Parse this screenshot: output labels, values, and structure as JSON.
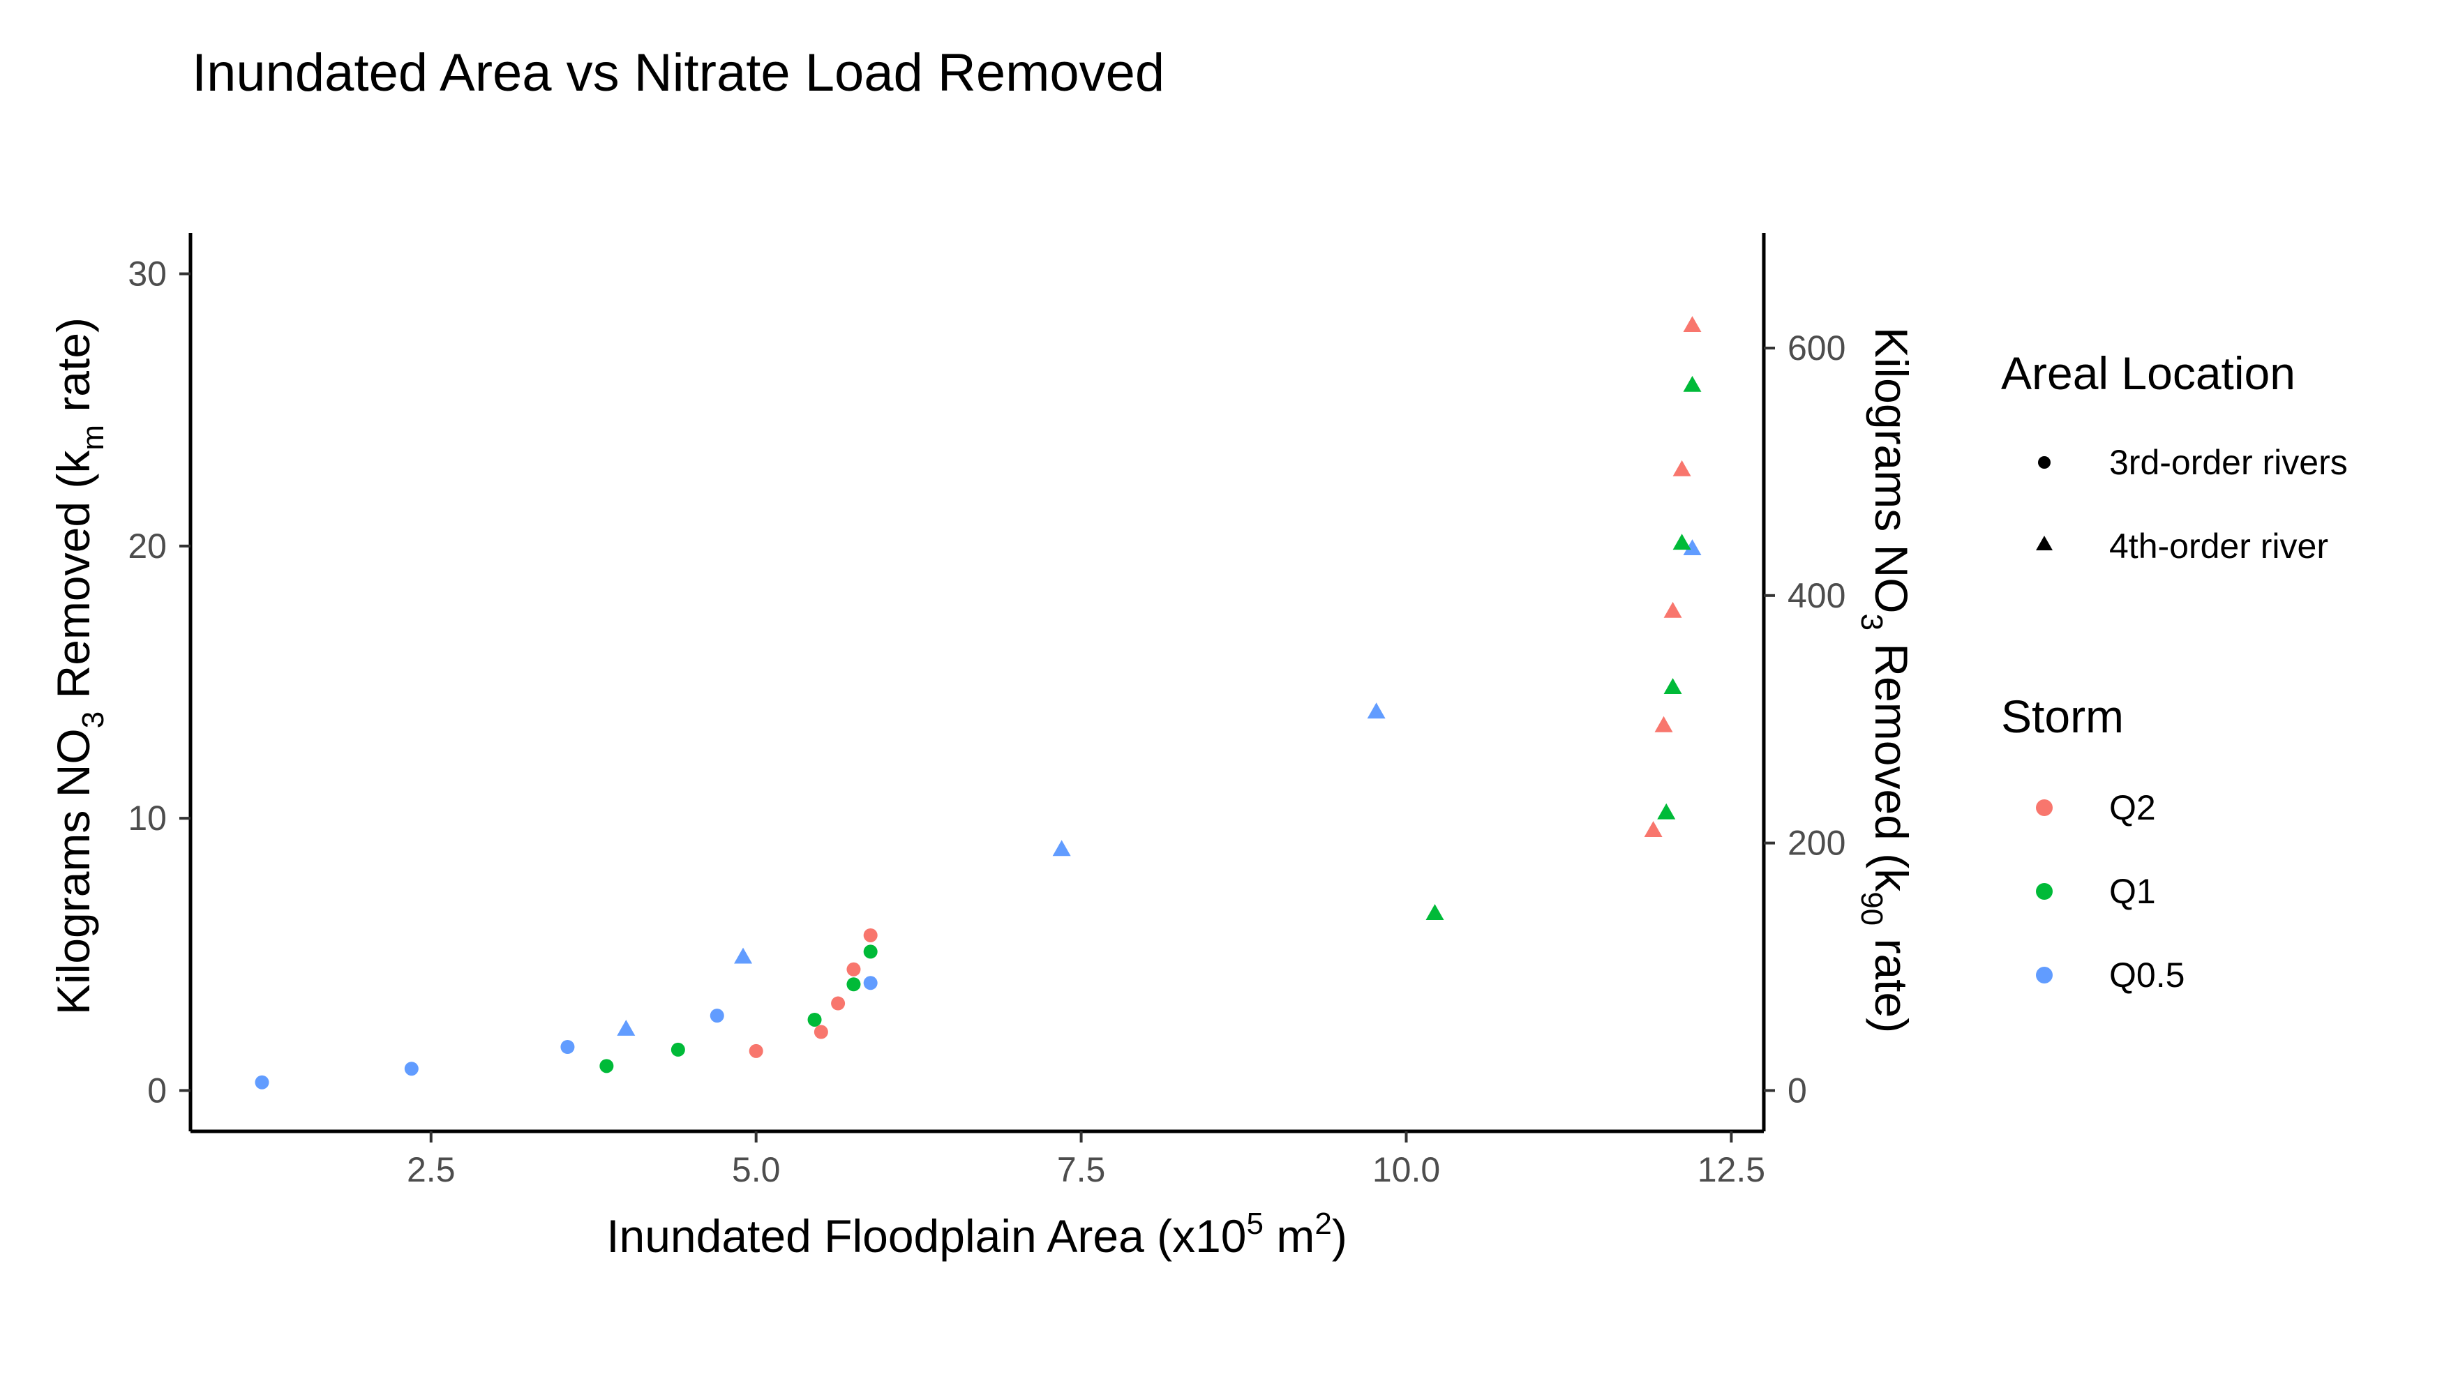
{
  "chart_data": {
    "type": "scatter",
    "title": "Inundated Area vs Nitrate Load Removed",
    "xlabel": {
      "main": "Inundated Floodplain Area (x10",
      "sup1": "5",
      "mid": " m",
      "sup2": "2",
      "end": ")"
    },
    "ylabel_left": {
      "main": "Kilograms NO",
      "sub1": "3",
      "mid": " Removed (k",
      "sub2": "m",
      "end": " rate)"
    },
    "ylabel_right": {
      "main": "Kilograms NO",
      "sub1": "3",
      "mid": " Removed (k",
      "sub2": "90",
      "end": " rate)"
    },
    "xlim": [
      0.65,
      12.75
    ],
    "ylim_left": [
      -1.5,
      31.5
    ],
    "ylim_right": [
      -33,
      693
    ],
    "x_ticks": [
      2.5,
      5.0,
      7.5,
      10.0,
      12.5
    ],
    "x_tick_labels": [
      "2.5",
      "5.0",
      "7.5",
      "10.0",
      "12.5"
    ],
    "y_left_ticks": [
      0,
      10,
      20,
      30
    ],
    "y_left_tick_labels": [
      "0",
      "10",
      "20",
      "30"
    ],
    "y_right_ticks": [
      0,
      200,
      400,
      600
    ],
    "y_right_tick_labels": [
      "0",
      "200",
      "400",
      "600"
    ],
    "grid": false,
    "legend_position": "right",
    "shape_legend": {
      "title": "Areal Location",
      "items": [
        {
          "label": "3rd-order rivers",
          "shape": "circle"
        },
        {
          "label": "4th-order river",
          "shape": "triangle"
        }
      ]
    },
    "color_legend": {
      "title": "Storm",
      "items": [
        {
          "label": "Q2",
          "color": "#F8766D"
        },
        {
          "label": "Q1",
          "color": "#00BA38"
        },
        {
          "label": "Q0.5",
          "color": "#619CFF"
        }
      ]
    },
    "series": [
      {
        "storm": "Q0.5",
        "location": "3rd-order rivers",
        "color": "#619CFF",
        "shape": "circle",
        "points": [
          [
            1.2,
            0.3
          ],
          [
            2.35,
            0.8
          ],
          [
            3.55,
            1.6
          ],
          [
            4.7,
            2.75
          ],
          [
            5.88,
            3.95
          ]
        ]
      },
      {
        "storm": "Q1",
        "location": "3rd-order rivers",
        "color": "#00BA38",
        "shape": "circle",
        "points": [
          [
            3.85,
            0.9
          ],
          [
            4.4,
            1.5
          ],
          [
            5.45,
            2.6
          ],
          [
            5.75,
            3.9
          ],
          [
            5.88,
            5.1
          ]
        ]
      },
      {
        "storm": "Q2",
        "location": "3rd-order rivers",
        "color": "#F8766D",
        "shape": "circle",
        "points": [
          [
            5.0,
            1.45
          ],
          [
            5.5,
            2.15
          ],
          [
            5.63,
            3.2
          ],
          [
            5.75,
            4.45
          ],
          [
            5.88,
            5.7
          ]
        ]
      },
      {
        "storm": "Q0.5",
        "location": "4th-order river",
        "color": "#619CFF",
        "shape": "triangle",
        "points": [
          [
            4.0,
            2.25
          ],
          [
            4.9,
            4.9
          ],
          [
            7.35,
            8.85
          ],
          [
            9.77,
            13.9
          ],
          [
            12.2,
            19.9
          ]
        ]
      },
      {
        "storm": "Q1",
        "location": "4th-order river",
        "color": "#00BA38",
        "shape": "triangle",
        "points": [
          [
            10.22,
            6.5
          ],
          [
            12.0,
            10.2
          ],
          [
            12.05,
            14.8
          ],
          [
            12.12,
            20.1
          ],
          [
            12.2,
            25.9
          ]
        ]
      },
      {
        "storm": "Q2",
        "location": "4th-order river",
        "color": "#F8766D",
        "shape": "triangle",
        "points": [
          [
            11.9,
            9.55
          ],
          [
            11.98,
            13.4
          ],
          [
            12.05,
            17.6
          ],
          [
            12.12,
            22.8
          ],
          [
            12.2,
            28.1
          ]
        ]
      }
    ]
  }
}
